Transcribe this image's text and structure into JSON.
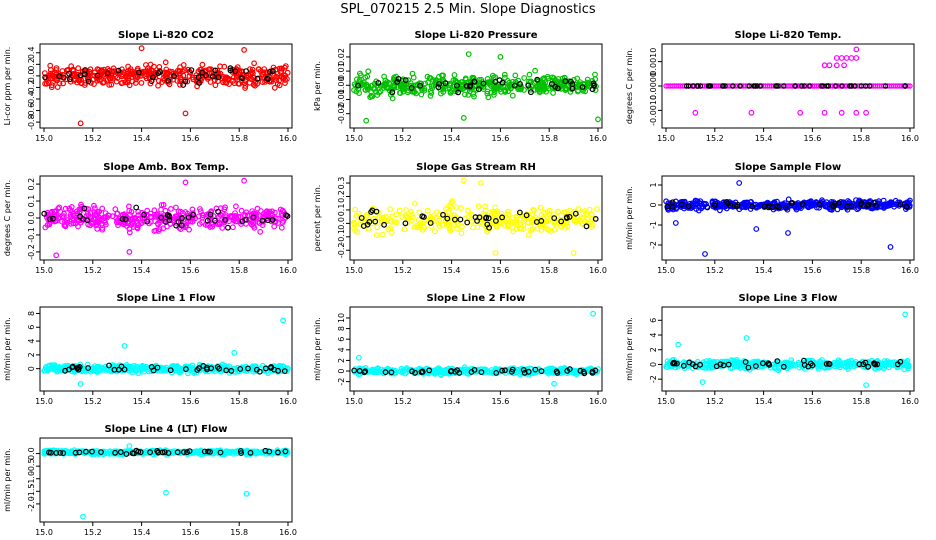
{
  "title": "SPL_070215  2.5 Min. Slope Diagnostics",
  "colors": {
    "highlight": "#000000"
  },
  "chart_data": [
    {
      "type": "scatter",
      "title": "Slope Li-820 CO2",
      "ylabel": "Li-cor ppm per min.",
      "color": "#ff0000",
      "xlim": [
        15.0,
        16.0
      ],
      "ylim": [
        -0.85,
        0.5
      ],
      "xticks": [
        "15.0",
        "15.2",
        "15.4",
        "15.6",
        "15.8",
        "16.0"
      ],
      "yticks": [
        "-0.8",
        "-0.6",
        "-0.4",
        "-0.2",
        "0.0",
        "0.2",
        "0.4"
      ],
      "ytick_values": [
        -0.8,
        -0.6,
        -0.4,
        -0.2,
        0.0,
        0.2,
        0.4
      ],
      "n": 420,
      "spread": 0.18,
      "center": 0.0,
      "outliers": [
        [
          15.15,
          -0.82
        ],
        [
          15.4,
          0.48
        ],
        [
          15.58,
          -0.65
        ],
        [
          15.82,
          0.45
        ]
      ]
    },
    {
      "type": "scatter",
      "title": "Slope Li-820 Pressure",
      "ylabel": "kPa per min.",
      "color": "#00c000",
      "xlim": [
        15.0,
        16.0
      ],
      "ylim": [
        -0.028,
        0.027
      ],
      "xticks": [
        "15.0",
        "15.2",
        "15.4",
        "15.6",
        "15.8",
        "16.0"
      ],
      "yticks": [
        "-0.02",
        "-0.01",
        "0.00",
        "0.01",
        "0.02"
      ],
      "ytick_values": [
        -0.02,
        -0.01,
        0.0,
        0.01,
        0.02
      ],
      "n": 420,
      "spread": 0.007,
      "center": 0.0,
      "outliers": [
        [
          15.47,
          0.022
        ],
        [
          15.45,
          -0.023
        ],
        [
          15.6,
          0.02
        ],
        [
          16.0,
          -0.024
        ],
        [
          15.05,
          -0.025
        ]
      ]
    },
    {
      "type": "scatter",
      "title": "Slope Li-820 Temp.",
      "ylabel": "degrees C per min.",
      "color": "#ff00ff",
      "xlim": [
        15.0,
        16.0
      ],
      "ylim": [
        -0.0016,
        0.0016
      ],
      "xticks": [
        "15.0",
        "15.2",
        "15.4",
        "15.6",
        "15.8",
        "16.0"
      ],
      "yticks": [
        "-0.0010",
        "0.0000",
        "0.0010"
      ],
      "ytick_values": [
        -0.001,
        0.0,
        0.001
      ],
      "n": 120,
      "spread": 0.0,
      "center": 0.0,
      "mode": "line",
      "outliers": [
        [
          15.72,
          0.00115
        ],
        [
          15.74,
          0.00115
        ],
        [
          15.76,
          0.00115
        ],
        [
          15.7,
          0.00115
        ],
        [
          15.78,
          0.00115
        ],
        [
          15.65,
          0.00085
        ],
        [
          15.67,
          0.00085
        ],
        [
          15.7,
          0.00085
        ],
        [
          15.73,
          0.00085
        ],
        [
          15.78,
          0.0015
        ],
        [
          15.12,
          -0.0011
        ],
        [
          15.35,
          -0.0011
        ],
        [
          15.55,
          -0.0011
        ],
        [
          15.65,
          -0.0011
        ],
        [
          15.72,
          -0.0011
        ],
        [
          15.78,
          -0.0011
        ],
        [
          15.82,
          -0.0011
        ]
      ]
    },
    {
      "type": "scatter",
      "title": "Slope Amb. Box Temp.",
      "ylabel": "degrees C per min.",
      "color": "#ff00ff",
      "xlim": [
        15.0,
        16.0
      ],
      "ylim": [
        -0.23,
        0.23
      ],
      "xticks": [
        "15.0",
        "15.2",
        "15.4",
        "15.6",
        "15.8",
        "16.0"
      ],
      "yticks": [
        "-0.2",
        "-0.1",
        "0.0",
        "0.1",
        "0.2"
      ],
      "ytick_values": [
        -0.2,
        -0.1,
        0.0,
        0.1,
        0.2
      ],
      "n": 420,
      "spread": 0.07,
      "center": 0.0,
      "outliers": [
        [
          15.05,
          -0.22
        ],
        [
          15.58,
          0.21
        ],
        [
          15.82,
          0.22
        ],
        [
          15.35,
          -0.2
        ]
      ]
    },
    {
      "type": "scatter",
      "title": "Slope Gas Stream RH",
      "ylabel": "percent per min.",
      "color": "#ffff00",
      "xlim": [
        15.0,
        16.0
      ],
      "ylim": [
        -0.25,
        0.33
      ],
      "xticks": [
        "15.0",
        "15.2",
        "15.4",
        "15.6",
        "15.8",
        "16.0"
      ],
      "yticks": [
        "-0.2",
        "-0.1",
        "0.0",
        "0.1",
        "0.2",
        "0.3"
      ],
      "ytick_values": [
        -0.2,
        -0.1,
        0.0,
        0.1,
        0.2,
        0.3
      ],
      "n": 300,
      "spread": 0.1,
      "center": 0.03,
      "outliers": [
        [
          15.45,
          0.32
        ],
        [
          15.52,
          0.3
        ],
        [
          15.58,
          -0.22
        ],
        [
          15.9,
          -0.22
        ]
      ]
    },
    {
      "type": "scatter",
      "title": "Slope Sample Flow",
      "ylabel": "ml/min per min.",
      "color": "#0000ff",
      "xlim": [
        15.0,
        16.0
      ],
      "ylim": [
        -2.6,
        1.3
      ],
      "xticks": [
        "15.0",
        "15.2",
        "15.4",
        "15.6",
        "15.8",
        "16.0"
      ],
      "yticks": [
        "-2",
        "-1",
        "0",
        "1"
      ],
      "ytick_values": [
        -2,
        -1,
        0,
        1
      ],
      "n": 420,
      "spread": 0.22,
      "center": 0.0,
      "outliers": [
        [
          15.3,
          1.1
        ],
        [
          15.37,
          -1.2
        ],
        [
          15.5,
          -1.4
        ],
        [
          15.16,
          -2.45
        ],
        [
          15.92,
          -2.1
        ],
        [
          15.04,
          -0.9
        ]
      ]
    },
    {
      "type": "scatter",
      "title": "Slope Line 1 Flow",
      "ylabel": "ml/min per min.",
      "color": "#00ffff",
      "xlim": [
        15.0,
        16.0
      ],
      "ylim": [
        -2.8,
        8.5
      ],
      "xticks": [
        "15.0",
        "15.2",
        "15.4",
        "15.6",
        "15.8",
        "16.0"
      ],
      "yticks": [
        "0",
        "2",
        "4",
        "6",
        "8"
      ],
      "ytick_values": [
        0,
        2,
        4,
        6,
        8
      ],
      "n": 420,
      "spread": 0.55,
      "center": 0.0,
      "outliers": [
        [
          15.33,
          3.3
        ],
        [
          15.98,
          7.0
        ],
        [
          15.78,
          2.3
        ],
        [
          15.15,
          -2.2
        ]
      ]
    },
    {
      "type": "scatter",
      "title": "Slope Line 2 Flow",
      "ylabel": "ml/min per min.",
      "color": "#00ffff",
      "xlim": [
        15.0,
        16.0
      ],
      "ylim": [
        -3.2,
        11.5
      ],
      "xticks": [
        "15.0",
        "15.2",
        "15.4",
        "15.6",
        "15.8",
        "16.0"
      ],
      "yticks": [
        "-2",
        "0",
        "2",
        "4",
        "6",
        "8",
        "10"
      ],
      "ytick_values": [
        -2,
        0,
        2,
        4,
        6,
        8,
        10
      ],
      "n": 420,
      "spread": 0.55,
      "center": 0.0,
      "outliers": [
        [
          15.98,
          10.8
        ],
        [
          15.02,
          2.5
        ],
        [
          15.82,
          -2.4
        ]
      ]
    },
    {
      "type": "scatter",
      "title": "Slope Line 3 Flow",
      "ylabel": "ml/min per min.",
      "color": "#00ffff",
      "xlim": [
        15.0,
        16.0
      ],
      "ylim": [
        -3.2,
        7.4
      ],
      "xticks": [
        "15.0",
        "15.2",
        "15.4",
        "15.6",
        "15.8",
        "16.0"
      ],
      "yticks": [
        "-2",
        "0",
        "2",
        "4",
        "6"
      ],
      "ytick_values": [
        -2,
        0,
        2,
        4,
        6
      ],
      "n": 420,
      "spread": 0.6,
      "center": 0.0,
      "outliers": [
        [
          15.33,
          3.6
        ],
        [
          15.05,
          2.7
        ],
        [
          15.98,
          6.8
        ],
        [
          15.82,
          -2.8
        ],
        [
          15.15,
          -2.4
        ]
      ]
    },
    {
      "type": "scatter",
      "title": "Slope Line 4 (LT) Flow",
      "ylabel": "ml/min per min.",
      "color": "#00ffff",
      "xlim": [
        15.0,
        16.0
      ],
      "ylim": [
        -2.6,
        0.5
      ],
      "xticks": [
        "15.0",
        "15.2",
        "15.4",
        "15.6",
        "15.8",
        "16.0"
      ],
      "yticks": [
        "-2.0",
        "-1.5",
        "-1.0",
        "-0.5",
        "0.0"
      ],
      "ytick_values": [
        -2.0,
        -1.5,
        -1.0,
        -0.5,
        0.0
      ],
      "n": 420,
      "spread": 0.08,
      "center": 0.05,
      "outliers": [
        [
          15.16,
          -2.5
        ],
        [
          15.5,
          -1.55
        ],
        [
          15.83,
          -1.6
        ],
        [
          15.35,
          0.3
        ]
      ]
    }
  ]
}
